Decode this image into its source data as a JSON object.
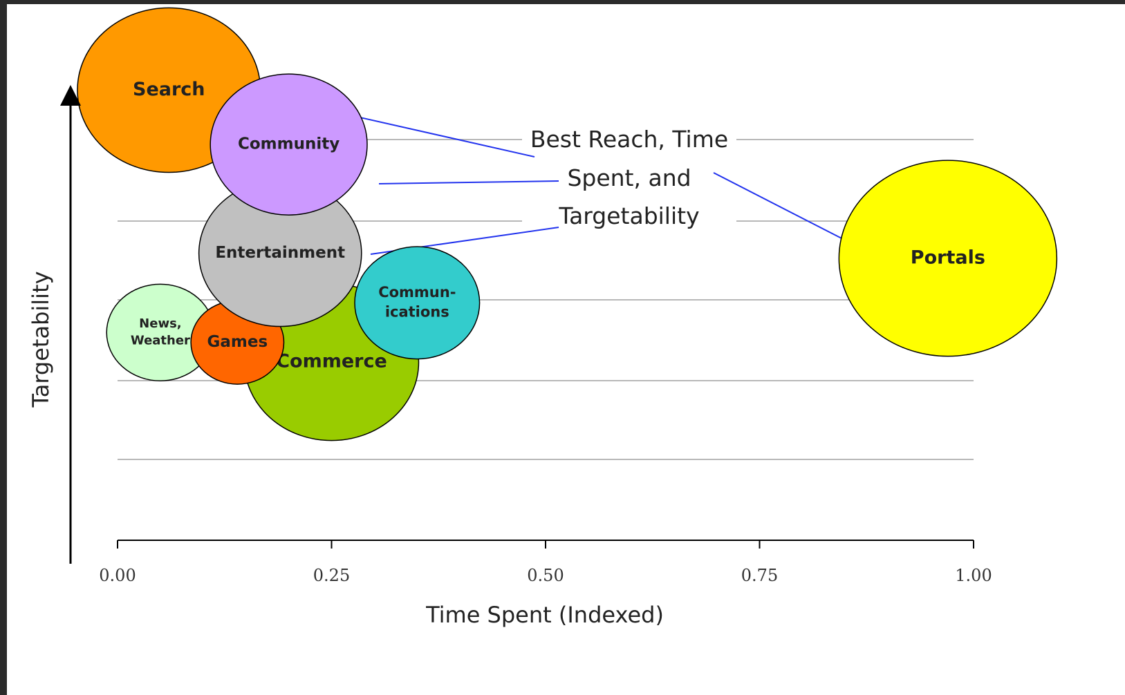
{
  "chart_data": {
    "type": "bubble",
    "xlabel": "Time Spent (Indexed)",
    "ylabel": "Targetability",
    "x_ticks": [
      "0.00",
      "0.25",
      "0.50",
      "0.75",
      "1.00"
    ],
    "xlim": [
      0,
      1
    ],
    "ylim": [
      0,
      1
    ],
    "grid": true,
    "annotation": [
      "Best Reach, Time",
      "Spent, and",
      "Targetability"
    ],
    "bubbles": [
      {
        "label": [
          "Commerce"
        ],
        "x": 0.25,
        "y": 0.36,
        "size": 0.6,
        "color": "#99CC00"
      },
      {
        "label": [
          "News,",
          "Weather"
        ],
        "x": 0.05,
        "y": 0.42,
        "size": 0.37,
        "color": "#CCFFCC"
      },
      {
        "label": [
          "Games"
        ],
        "x": 0.14,
        "y": 0.4,
        "size": 0.32,
        "color": "#FF6600"
      },
      {
        "label": [
          "Commun-",
          "ications"
        ],
        "x": 0.35,
        "y": 0.48,
        "size": 0.43,
        "color": "#33CCCC"
      },
      {
        "label": [
          "Entertainment"
        ],
        "x": 0.19,
        "y": 0.58,
        "size": 0.56,
        "color": "#C0C0C0"
      },
      {
        "label": [
          "Search"
        ],
        "x": 0.06,
        "y": 0.91,
        "size": 0.63,
        "color": "#FF9900"
      },
      {
        "label": [
          "Community"
        ],
        "x": 0.2,
        "y": 0.8,
        "size": 0.54,
        "color": "#CC99FF"
      },
      {
        "label": [
          "Portals"
        ],
        "x": 0.97,
        "y": 0.57,
        "size": 0.75,
        "color": "#FFFF00"
      }
    ]
  }
}
